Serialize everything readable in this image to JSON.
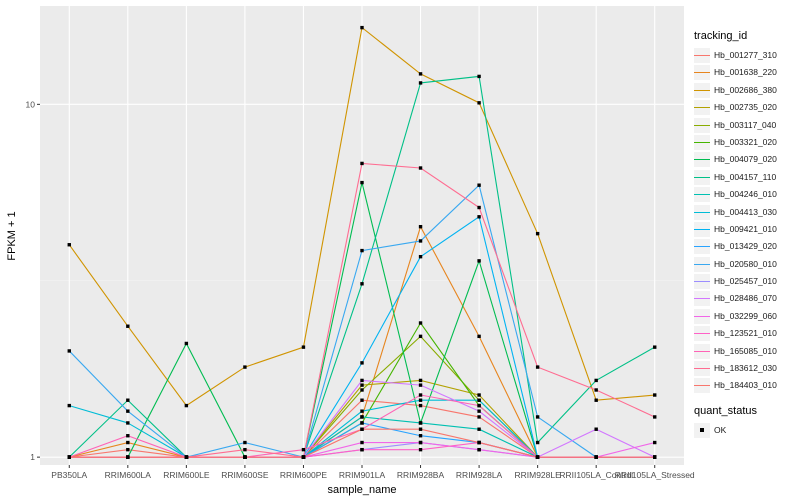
{
  "chart_data": {
    "type": "line",
    "xlabel": "sample_name",
    "ylabel": "FPKM + 1",
    "y_scale": "log10",
    "ylim": [
      0.95,
      19
    ],
    "y_ticks": [
      {
        "value": 1,
        "label": "1"
      },
      {
        "value": 10,
        "label": "10"
      }
    ],
    "categories": [
      "PB350LA",
      "RRIM600LA",
      "RRIM600LE",
      "RRIM600SE",
      "RRIM600PE",
      "RRIM901LA",
      "RRIM928BA",
      "RRIM928LA",
      "RRIM928LE",
      "RRII105LA_Control",
      "RRII105LA_Stressed"
    ],
    "legend_title": "tracking_id",
    "status_legend_title": "quant_status",
    "status_legend_label": "OK",
    "point_color": "#000000",
    "series": [
      {
        "name": "Hb_001277_310",
        "color": "#F8766D",
        "values": [
          1,
          1.05,
          1,
          1,
          1,
          1.45,
          1.4,
          1.3,
          1,
          1,
          1
        ]
      },
      {
        "name": "Hb_001638_220",
        "color": "#E7851E",
        "values": [
          1,
          1.1,
          1,
          1,
          1,
          1.3,
          4.5,
          2.2,
          1,
          1,
          1
        ]
      },
      {
        "name": "Hb_002686_380",
        "color": "#D09400",
        "values": [
          4,
          2.35,
          1.4,
          1.8,
          2.05,
          16.5,
          12.2,
          10.1,
          4.3,
          1.45,
          1.5
        ]
      },
      {
        "name": "Hb_002735_020",
        "color": "#B2A100",
        "values": [
          1,
          1,
          1,
          1,
          1,
          1.6,
          1.65,
          1.5,
          1,
          1,
          1
        ]
      },
      {
        "name": "Hb_003117_040",
        "color": "#89AC00",
        "values": [
          1,
          1,
          1,
          1,
          1,
          1.55,
          2.2,
          1.45,
          1,
          1,
          1
        ]
      },
      {
        "name": "Hb_003321_020",
        "color": "#45B500",
        "values": [
          1,
          1,
          1,
          1,
          1,
          1.25,
          2.4,
          1.4,
          1,
          1,
          1
        ]
      },
      {
        "name": "Hb_004079_020",
        "color": "#00BC51",
        "values": [
          1,
          1,
          2.1,
          1,
          1,
          6,
          1.25,
          3.6,
          1,
          1,
          1
        ]
      },
      {
        "name": "Hb_004157_110",
        "color": "#00C087",
        "values": [
          1,
          1.45,
          1,
          1,
          1,
          3.1,
          11.5,
          12,
          1.1,
          1.65,
          2.05
        ]
      },
      {
        "name": "Hb_004246_010",
        "color": "#00C0B2",
        "values": [
          1,
          1,
          1,
          1,
          1,
          1.3,
          1.25,
          1.2,
          1,
          1,
          1
        ]
      },
      {
        "name": "Hb_004413_030",
        "color": "#00BCD6",
        "values": [
          1.4,
          1.25,
          1,
          1,
          1,
          1.35,
          1.45,
          1.45,
          1,
          1,
          1
        ]
      },
      {
        "name": "Hb_009421_010",
        "color": "#00B3F2",
        "values": [
          1,
          1,
          1,
          1,
          1,
          1.85,
          3.7,
          4.8,
          1,
          1,
          1
        ]
      },
      {
        "name": "Hb_013429_020",
        "color": "#29A3FF",
        "values": [
          1,
          1,
          1,
          1,
          1,
          1.25,
          1.15,
          1.1,
          1,
          1,
          1
        ]
      },
      {
        "name": "Hb_020580_010",
        "color": "#39A8F0",
        "values": [
          2,
          1.35,
          1,
          1.1,
          1,
          3.85,
          4.1,
          5.9,
          1.3,
          1,
          1
        ]
      },
      {
        "name": "Hb_025457_010",
        "color": "#9C8DFF",
        "values": [
          1,
          1,
          1,
          1,
          1,
          1.05,
          1.1,
          1.05,
          1,
          1,
          1
        ]
      },
      {
        "name": "Hb_028486_070",
        "color": "#D277FF",
        "values": [
          1,
          1,
          1,
          1,
          1,
          1.65,
          1.6,
          1.35,
          1,
          1.2,
          1
        ]
      },
      {
        "name": "Hb_032299_060",
        "color": "#F166E8",
        "values": [
          1,
          1,
          1,
          1,
          1,
          1.1,
          1.1,
          1.05,
          1,
          1,
          1.1
        ]
      },
      {
        "name": "Hb_123521_010",
        "color": "#FF61C7",
        "values": [
          1,
          1,
          1,
          1,
          1,
          1.05,
          1.05,
          1.1,
          1,
          1,
          1
        ]
      },
      {
        "name": "Hb_165085_010",
        "color": "#FF63B6",
        "values": [
          1,
          1.15,
          1,
          1,
          1.05,
          1.2,
          1.5,
          1.4,
          1,
          1,
          1
        ]
      },
      {
        "name": "Hb_183612_030",
        "color": "#FF6C91",
        "values": [
          1,
          1,
          1,
          1.05,
          1,
          6.8,
          6.6,
          5.1,
          1.8,
          1.55,
          1.3
        ]
      },
      {
        "name": "Hb_184403_010",
        "color": "#F8766D",
        "values": [
          1,
          1,
          1,
          1,
          1,
          1.2,
          1.2,
          1.1,
          1,
          1,
          1
        ]
      }
    ]
  }
}
